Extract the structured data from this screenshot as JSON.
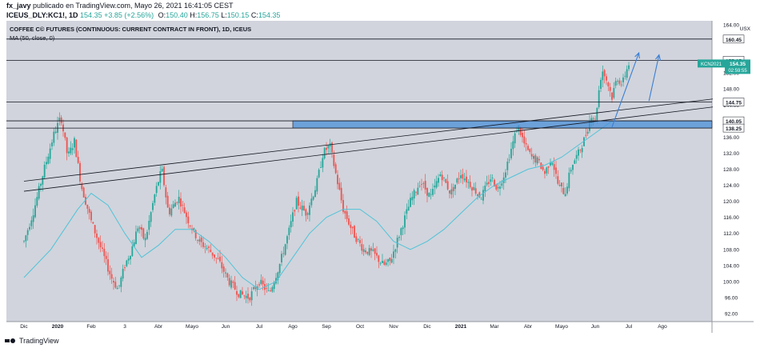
{
  "header": {
    "author": "fx_javy",
    "published": "publicado en TradingView.com, Mayo 26, 2021 16:41:05 CEST",
    "symbol": "ICEUS_DLY:KC1!, 1D",
    "last": "154.35",
    "change": "+3.85 (+2.56%)",
    "o_label": "O:",
    "o": "150.40",
    "h_label": "H:",
    "h": "156.75",
    "l_label": "L:",
    "l": "150.15",
    "c_label": "C:",
    "c": "154.35"
  },
  "footer": {
    "brand": "TradingView"
  },
  "colors": {
    "plot_bg": "#d1d4dc",
    "bull": "#26a69a",
    "bear": "#ef5350",
    "ma": "#4fc3d9",
    "zone": "#4a90d9",
    "arrow": "#3a7fd5",
    "price_label": "#26a69a"
  },
  "chart_data": {
    "type": "candlestick",
    "title": "COFFEE C© FUTURES (CONTINUOUS: CURRENT CONTRACT IN FRONT), 1D, ICEUS",
    "indicator_label": "MA (50, close, 0)",
    "unit": "USX",
    "ylim": [
      90,
      165
    ],
    "y_ticks": [
      92,
      96,
      100,
      104,
      108,
      112,
      116,
      120,
      124,
      128,
      132,
      136,
      144,
      148,
      152,
      164
    ],
    "x_ticks": [
      "Dic",
      "2020",
      "Feb",
      "3",
      "Abr",
      "Mayo",
      "Jun",
      "Jul",
      "Ago",
      "Sep",
      "Oct",
      "Nov",
      "Dic",
      "2021",
      "Mar",
      "Abr",
      "Mayo",
      "Jun",
      "Jul",
      "Ago"
    ],
    "x_tick_bold": [
      "2020",
      "2021"
    ],
    "horizontal_levels": [
      {
        "value": 160.45,
        "label": "160.45"
      },
      {
        "value": 155.15,
        "label": "155.15"
      },
      {
        "value": 144.75,
        "label": "144.75"
      },
      {
        "value": 140.05,
        "label": "140.05"
      },
      {
        "value": 138.25,
        "label": "138.25"
      }
    ],
    "zone": {
      "from": 138.25,
      "to": 140.05,
      "start_month": 8.0
    },
    "trend_lines": [
      {
        "start": [
          0.0,
          125.0
        ],
        "end": [
          20.5,
          145.5
        ]
      },
      {
        "start": [
          0.0,
          122.5
        ],
        "end": [
          20.5,
          143.5
        ]
      }
    ],
    "current_price": {
      "label": "KCN2021",
      "value": "154.35",
      "countdown": "02:59:55"
    },
    "arrows": [
      {
        "start": [
          17.5,
          138.5
        ],
        "end": [
          18.3,
          157.0
        ]
      },
      {
        "start": [
          18.6,
          145.0
        ],
        "end": [
          18.9,
          156.5
        ]
      }
    ],
    "ma_anchors": [
      [
        0,
        101
      ],
      [
        0.8,
        108
      ],
      [
        1.6,
        118
      ],
      [
        2.0,
        122
      ],
      [
        2.5,
        119
      ],
      [
        3.0,
        112
      ],
      [
        3.5,
        106
      ],
      [
        4.0,
        109
      ],
      [
        4.5,
        113
      ],
      [
        5.0,
        113
      ],
      [
        5.5,
        110
      ],
      [
        6.0,
        106
      ],
      [
        6.5,
        101
      ],
      [
        7.0,
        98
      ],
      [
        7.5,
        100
      ],
      [
        8.0,
        106
      ],
      [
        8.5,
        112
      ],
      [
        9.0,
        116
      ],
      [
        9.5,
        118
      ],
      [
        10.0,
        118
      ],
      [
        10.5,
        115
      ],
      [
        11.0,
        110
      ],
      [
        11.5,
        108
      ],
      [
        12.0,
        110
      ],
      [
        12.5,
        113
      ],
      [
        13.0,
        117
      ],
      [
        13.5,
        121
      ],
      [
        14.0,
        124
      ],
      [
        14.5,
        126
      ],
      [
        15.0,
        128
      ],
      [
        15.5,
        129
      ],
      [
        16.0,
        131
      ],
      [
        16.5,
        134
      ],
      [
        17.0,
        137
      ],
      [
        17.5,
        140
      ]
    ],
    "price_anchors": [
      [
        0,
        110
      ],
      [
        0.3,
        118
      ],
      [
        0.6,
        128
      ],
      [
        0.9,
        137
      ],
      [
        1.1,
        141
      ],
      [
        1.3,
        131
      ],
      [
        1.5,
        135
      ],
      [
        1.7,
        124
      ],
      [
        2.0,
        115
      ],
      [
        2.3,
        108
      ],
      [
        2.6,
        101
      ],
      [
        2.8,
        98
      ],
      [
        3.0,
        104
      ],
      [
        3.2,
        108
      ],
      [
        3.4,
        114
      ],
      [
        3.6,
        110
      ],
      [
        3.9,
        122
      ],
      [
        4.1,
        128
      ],
      [
        4.3,
        117
      ],
      [
        4.6,
        121
      ],
      [
        4.9,
        115
      ],
      [
        5.2,
        110
      ],
      [
        5.5,
        108
      ],
      [
        5.8,
        105
      ],
      [
        6.1,
        100
      ],
      [
        6.4,
        97
      ],
      [
        6.7,
        96
      ],
      [
        7.0,
        100
      ],
      [
        7.3,
        97
      ],
      [
        7.6,
        104
      ],
      [
        7.9,
        113
      ],
      [
        8.1,
        120
      ],
      [
        8.4,
        117
      ],
      [
        8.7,
        124
      ],
      [
        8.9,
        132
      ],
      [
        9.1,
        134
      ],
      [
        9.3,
        126
      ],
      [
        9.5,
        118
      ],
      [
        9.8,
        112
      ],
      [
        10.1,
        108
      ],
      [
        10.4,
        107
      ],
      [
        10.7,
        104
      ],
      [
        10.9,
        105
      ],
      [
        11.1,
        110
      ],
      [
        11.3,
        115
      ],
      [
        11.5,
        120
      ],
      [
        11.8,
        125
      ],
      [
        12.1,
        121
      ],
      [
        12.4,
        127
      ],
      [
        12.7,
        122
      ],
      [
        13.0,
        127
      ],
      [
        13.3,
        124
      ],
      [
        13.6,
        121
      ],
      [
        13.9,
        126
      ],
      [
        14.1,
        123
      ],
      [
        14.3,
        127
      ],
      [
        14.5,
        133
      ],
      [
        14.7,
        139
      ],
      [
        14.9,
        134
      ],
      [
        15.1,
        131
      ],
      [
        15.3,
        130
      ],
      [
        15.5,
        127
      ],
      [
        15.7,
        131
      ],
      [
        15.9,
        124
      ],
      [
        16.1,
        122
      ],
      [
        16.3,
        129
      ],
      [
        16.5,
        132
      ],
      [
        16.7,
        136
      ],
      [
        16.9,
        142
      ],
      [
        17.0,
        140
      ],
      [
        17.1,
        147
      ],
      [
        17.2,
        153
      ],
      [
        17.35,
        150
      ],
      [
        17.5,
        146
      ],
      [
        17.65,
        151
      ],
      [
        17.8,
        149
      ],
      [
        17.9,
        152
      ],
      [
        18.0,
        154.35
      ]
    ]
  }
}
